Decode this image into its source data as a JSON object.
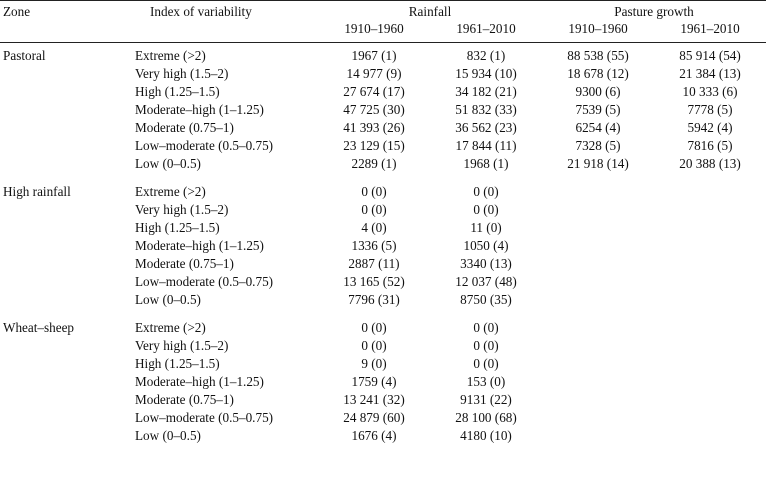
{
  "header": {
    "zone": "Zone",
    "index": "Index of variability",
    "rainfall": "Rainfall",
    "pasture": "Pasture growth",
    "periods": [
      "1910–1960",
      "1961–2010",
      "1910–1960",
      "1961–2010"
    ]
  },
  "zones": [
    {
      "name": "Pastoral",
      "rows": [
        {
          "index": "Extreme (>2)",
          "r1": "1967 (1)",
          "r2": "832 (1)",
          "p1": "88 538 (55)",
          "p2": "85 914 (54)"
        },
        {
          "index": "Very high (1.5–2)",
          "r1": "14 977 (9)",
          "r2": "15 934 (10)",
          "p1": "18 678 (12)",
          "p2": "21 384 (13)"
        },
        {
          "index": "High (1.25–1.5)",
          "r1": "27 674 (17)",
          "r2": "34 182 (21)",
          "p1": "9300 (6)",
          "p2": "10 333 (6)"
        },
        {
          "index": "Moderate–high (1–1.25)",
          "r1": "47 725 (30)",
          "r2": "51 832 (33)",
          "p1": "7539 (5)",
          "p2": "7778 (5)"
        },
        {
          "index": "Moderate (0.75–1)",
          "r1": "41 393 (26)",
          "r2": "36 562 (23)",
          "p1": "6254 (4)",
          "p2": "5942 (4)"
        },
        {
          "index": "Low–moderate (0.5–0.75)",
          "r1": "23 129 (15)",
          "r2": "17 844 (11)",
          "p1": "7328 (5)",
          "p2": "7816 (5)"
        },
        {
          "index": "Low (0–0.5)",
          "r1": "2289 (1)",
          "r2": "1968 (1)",
          "p1": "21 918 (14)",
          "p2": "20 388 (13)"
        }
      ]
    },
    {
      "name": "High rainfall",
      "rows": [
        {
          "index": "Extreme (>2)",
          "r1": "0 (0)",
          "r2": "0 (0)",
          "p1": "",
          "p2": ""
        },
        {
          "index": "Very high (1.5–2)",
          "r1": "0 (0)",
          "r2": "0 (0)",
          "p1": "",
          "p2": ""
        },
        {
          "index": "High (1.25–1.5)",
          "r1": "4 (0)",
          "r2": "11 (0)",
          "p1": "",
          "p2": ""
        },
        {
          "index": "Moderate–high (1–1.25)",
          "r1": "1336 (5)",
          "r2": "1050 (4)",
          "p1": "",
          "p2": ""
        },
        {
          "index": "Moderate (0.75–1)",
          "r1": "2887 (11)",
          "r2": "3340 (13)",
          "p1": "",
          "p2": ""
        },
        {
          "index": "Low–moderate (0.5–0.75)",
          "r1": "13 165 (52)",
          "r2": "12 037 (48)",
          "p1": "",
          "p2": ""
        },
        {
          "index": "Low (0–0.5)",
          "r1": "7796 (31)",
          "r2": "8750 (35)",
          "p1": "",
          "p2": ""
        }
      ]
    },
    {
      "name": "Wheat–sheep",
      "rows": [
        {
          "index": "Extreme (>2)",
          "r1": "0 (0)",
          "r2": "0 (0)",
          "p1": "",
          "p2": ""
        },
        {
          "index": "Very high (1.5–2)",
          "r1": "0 (0)",
          "r2": "0 (0)",
          "p1": "",
          "p2": ""
        },
        {
          "index": "High (1.25–1.5)",
          "r1": "9 (0)",
          "r2": "0 (0)",
          "p1": "",
          "p2": ""
        },
        {
          "index": "Moderate–high (1–1.25)",
          "r1": "1759 (4)",
          "r2": "153 (0)",
          "p1": "",
          "p2": ""
        },
        {
          "index": "Moderate (0.75–1)",
          "r1": "13 241 (32)",
          "r2": "9131 (22)",
          "p1": "",
          "p2": ""
        },
        {
          "index": "Low–moderate (0.5–0.75)",
          "r1": "24 879 (60)",
          "r2": "28 100 (68)",
          "p1": "",
          "p2": ""
        },
        {
          "index": "Low (0–0.5)",
          "r1": "1676 (4)",
          "r2": "4180 (10)",
          "p1": "",
          "p2": ""
        }
      ]
    }
  ]
}
